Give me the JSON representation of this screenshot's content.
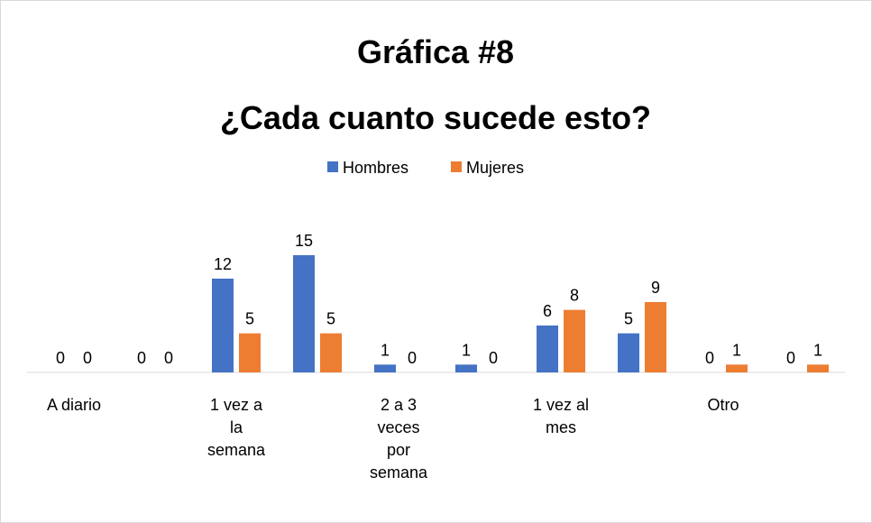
{
  "chart_data": {
    "type": "bar",
    "title": [
      "Gráfica #8",
      "¿Cada cuanto sucede esto?"
    ],
    "categories": [
      "A diario",
      null,
      "1 vez a la semana",
      null,
      "2 a 3 veces por semana",
      null,
      "1 vez al mes",
      null,
      "Otro",
      null
    ],
    "series": [
      {
        "name": "Hombres",
        "color": "#4472c4",
        "values": [
          0,
          0,
          12,
          15,
          1,
          1,
          6,
          5,
          0,
          0
        ]
      },
      {
        "name": "Mujeres",
        "color": "#ed7d31",
        "values": [
          0,
          0,
          5,
          5,
          0,
          0,
          8,
          9,
          1,
          1
        ]
      }
    ],
    "ylim": [
      0,
      15
    ],
    "legend": "top"
  }
}
